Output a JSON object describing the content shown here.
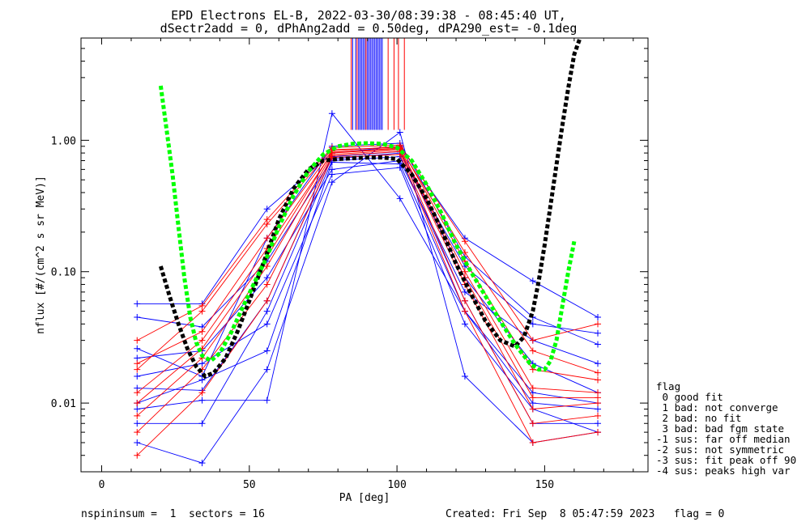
{
  "chart_data": {
    "type": "line",
    "title_line1": "EPD Electrons EL-B, 2022-03-30/08:39:38 - 08:45:40 UT,",
    "title_line2": "dSectr2add = 0, dPhAng2add = 0.50deg, dPA290_est=  -0.1deg",
    "xlabel": "PA [deg]",
    "ylabel": "nflux [#/(cm^2 s sr MeV)]",
    "xlim": [
      -7,
      185
    ],
    "ylim": [
      0.003,
      6.0
    ],
    "yscale": "log",
    "x_ticks": [
      0,
      50,
      100,
      150
    ],
    "x_tick_labels": [
      "0",
      "50",
      "100",
      "150"
    ],
    "y_ticks": [
      0.01,
      0.1,
      1.0
    ],
    "y_tick_labels": [
      "0.01",
      "0.10",
      "1.00"
    ],
    "pa_bins": [
      12,
      34,
      56,
      78,
      101,
      123,
      146,
      168
    ],
    "profiles_blue": [
      [
        0.057,
        0.057,
        0.3,
        0.8,
        0.9,
        0.18,
        0.085,
        0.045
      ],
      [
        0.026,
        0.016,
        0.18,
        0.9,
        0.95,
        0.13,
        0.045,
        0.028
      ],
      [
        0.009,
        0.0105,
        0.0105,
        1.6,
        0.36,
        0.05,
        0.012,
        0.01
      ],
      [
        0.005,
        0.0035,
        0.018,
        0.48,
        1.15,
        0.016,
        0.005,
        0.006
      ],
      [
        0.013,
        0.0125,
        0.06,
        0.75,
        0.82,
        0.09,
        0.02,
        0.012
      ],
      [
        0.007,
        0.007,
        0.05,
        0.7,
        0.75,
        0.06,
        0.007,
        0.007
      ],
      [
        0.022,
        0.025,
        0.09,
        0.6,
        0.7,
        0.07,
        0.03,
        0.02
      ],
      [
        0.016,
        0.02,
        0.04,
        0.55,
        0.62,
        0.04,
        0.009,
        0.006
      ],
      [
        0.01,
        0.015,
        0.025,
        0.68,
        0.66,
        0.05,
        0.01,
        0.009
      ],
      [
        0.045,
        0.038,
        0.12,
        0.72,
        0.8,
        0.11,
        0.04,
        0.034
      ]
    ],
    "profiles_red": [
      [
        0.03,
        0.055,
        0.25,
        0.88,
        0.92,
        0.17,
        0.03,
        0.04
      ],
      [
        0.018,
        0.05,
        0.23,
        0.85,
        0.88,
        0.14,
        0.025,
        0.017
      ],
      [
        0.012,
        0.03,
        0.15,
        0.8,
        0.86,
        0.1,
        0.013,
        0.012
      ],
      [
        0.008,
        0.022,
        0.11,
        0.78,
        0.84,
        0.08,
        0.009,
        0.01
      ],
      [
        0.006,
        0.018,
        0.08,
        0.76,
        0.82,
        0.06,
        0.007,
        0.008
      ],
      [
        0.004,
        0.012,
        0.06,
        0.74,
        0.78,
        0.05,
        0.005,
        0.006
      ],
      [
        0.02,
        0.035,
        0.18,
        0.83,
        0.9,
        0.12,
        0.018,
        0.015
      ],
      [
        0.01,
        0.026,
        0.13,
        0.81,
        0.87,
        0.09,
        0.011,
        0.011
      ]
    ],
    "spike_blue_x": [
      85,
      86,
      87,
      87.5,
      88,
      88.5,
      89,
      89.5,
      90,
      90.5,
      91,
      91.5,
      92,
      92.5,
      93,
      93.5,
      94,
      94.5,
      95
    ],
    "spike_red_x": [
      84.5,
      86.5,
      89.5,
      97,
      99,
      100.5,
      102.5
    ],
    "spike_range": [
      1.2,
      6.0
    ],
    "fit_black": {
      "x": [
        20,
        23,
        26,
        29,
        32,
        35,
        38,
        42,
        46,
        50,
        55,
        60,
        65,
        70,
        75,
        80,
        85,
        90,
        95,
        100,
        105,
        110,
        115,
        120,
        125,
        130,
        135,
        140,
        143,
        146,
        148,
        150,
        152,
        154,
        156,
        158,
        160,
        162
      ],
      "y": [
        0.11,
        0.065,
        0.04,
        0.026,
        0.019,
        0.016,
        0.017,
        0.022,
        0.035,
        0.06,
        0.12,
        0.25,
        0.43,
        0.6,
        0.7,
        0.72,
        0.73,
        0.74,
        0.74,
        0.72,
        0.55,
        0.36,
        0.21,
        0.115,
        0.068,
        0.042,
        0.03,
        0.027,
        0.032,
        0.05,
        0.085,
        0.16,
        0.32,
        0.65,
        1.3,
        2.5,
        4.5,
        6.0
      ]
    },
    "fit_green": {
      "x": [
        20,
        22,
        24,
        26,
        28,
        30,
        32,
        34,
        37,
        40,
        44,
        48,
        52,
        56,
        60,
        65,
        70,
        75,
        80,
        85,
        90,
        95,
        100,
        105,
        110,
        115,
        120,
        125,
        130,
        135,
        140,
        145,
        148,
        150,
        152,
        154,
        156,
        158,
        160
      ],
      "y": [
        2.6,
        1.2,
        0.55,
        0.22,
        0.09,
        0.045,
        0.029,
        0.023,
        0.021,
        0.024,
        0.035,
        0.055,
        0.085,
        0.13,
        0.22,
        0.38,
        0.58,
        0.78,
        0.9,
        0.94,
        0.95,
        0.94,
        0.88,
        0.7,
        0.46,
        0.28,
        0.16,
        0.1,
        0.065,
        0.042,
        0.028,
        0.02,
        0.018,
        0.018,
        0.021,
        0.03,
        0.055,
        0.1,
        0.17
      ]
    },
    "colors": {
      "blue": "#0000ff",
      "red": "#ff0000",
      "black": "#000000",
      "green": "#00ff00"
    },
    "legend": {
      "title": "flag",
      "entries": [
        " 0 good fit",
        " 1 bad: not converge",
        " 2 bad: no fit",
        " 3 bad: bad fgm state",
        "-1 sus: far off median",
        "-2 sus: not symmetric",
        "-3 sus: fit peak off 90",
        "-4 sus: peaks high var"
      ]
    },
    "footer_left": "nspininsum =  1  sectors = 16",
    "footer_right": "Created: Fri Sep  8 05:47:59 2023   flag = 0"
  }
}
